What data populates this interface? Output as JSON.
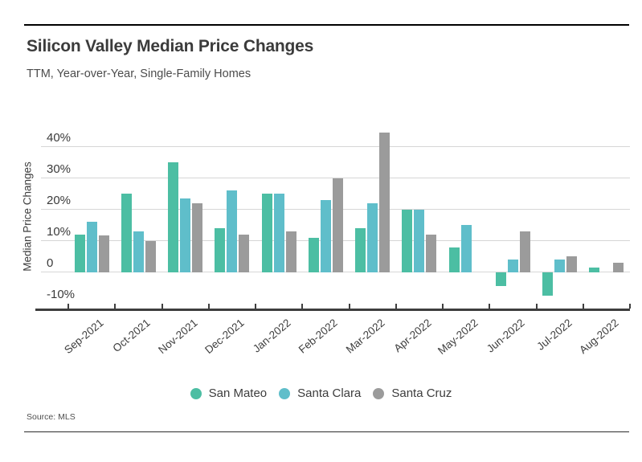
{
  "header": {
    "title": "Silicon Valley Median Price Changes",
    "subtitle": "TTM, Year-over-Year, Single-Family Homes"
  },
  "source_note": "Source: MLS",
  "chart_data": {
    "type": "bar",
    "title": "Silicon Valley Median Price Changes",
    "subtitle": "TTM, Year-over-Year, Single-Family Homes",
    "ylabel": "Median Price Changes",
    "xlabel": "",
    "categories": [
      "Sep-2021",
      "Oct-2021",
      "Nov-2021",
      "Dec-2021",
      "Jan-2022",
      "Feb-2022",
      "Mar-2022",
      "Apr-2022",
      "May-2022",
      "Jun-2022",
      "Jul-2022",
      "Aug-2022"
    ],
    "series": [
      {
        "name": "San Mateo",
        "color": "#4cbea3",
        "values": [
          12,
          25,
          35,
          14,
          25,
          11,
          14,
          20,
          8,
          -4.5,
          -7.5,
          1.5
        ]
      },
      {
        "name": "Santa Clara",
        "color": "#5fbeca",
        "values": [
          16,
          13,
          23.5,
          26,
          25,
          23,
          22,
          20,
          15,
          4,
          4,
          null
        ]
      },
      {
        "name": "Santa Cruz",
        "color": "#9b9b9b",
        "values": [
          11.8,
          10,
          22,
          12,
          13,
          30,
          44.5,
          12,
          null,
          13,
          5,
          3
        ]
      }
    ],
    "yticks": [
      {
        "value": 40,
        "label": "40%"
      },
      {
        "value": 30,
        "label": "30%"
      },
      {
        "value": 20,
        "label": "20%"
      },
      {
        "value": 10,
        "label": "10%"
      },
      {
        "value": 0,
        "label": "0"
      },
      {
        "value": -10,
        "label": "-10%"
      }
    ],
    "ylim": [
      -12.3,
      45
    ],
    "grid": true,
    "legend_position": "bottom"
  }
}
